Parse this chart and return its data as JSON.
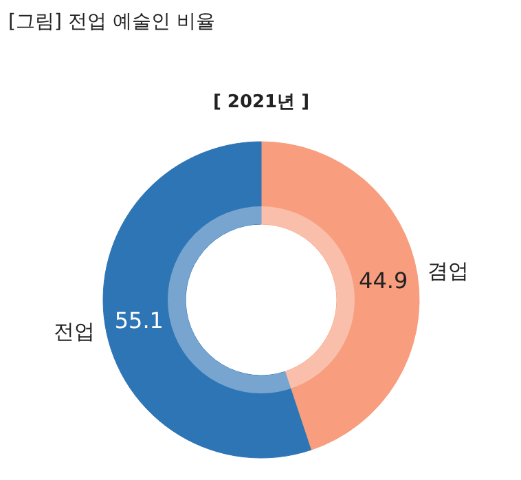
{
  "chart_data": {
    "type": "donut",
    "title": "[그림] 전업 예술인 비율",
    "subtitle": "[ 2021년 ]",
    "categories": [
      "겸업",
      "전업"
    ],
    "values": [
      44.9,
      55.1
    ],
    "colors": [
      "#f89d7e",
      "#2e75b6"
    ],
    "data_labels": true
  }
}
